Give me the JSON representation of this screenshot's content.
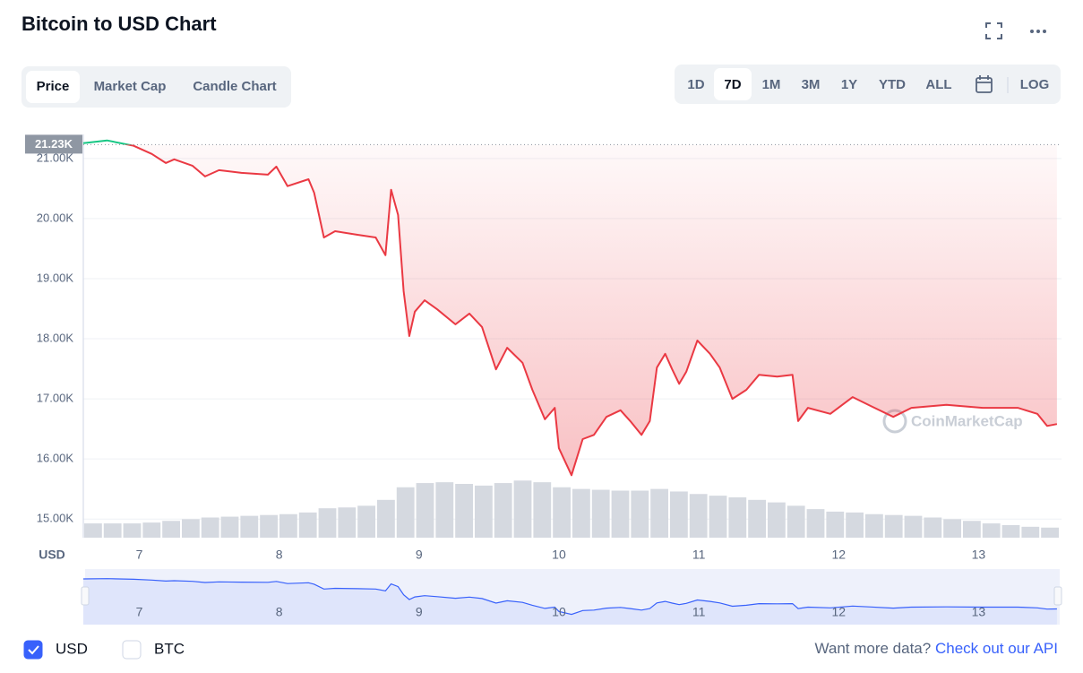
{
  "header": {
    "title": "Bitcoin to USD Chart"
  },
  "tabs": {
    "items": [
      "Price",
      "Market Cap",
      "Candle Chart"
    ],
    "active": 0
  },
  "ranges": {
    "items": [
      "1D",
      "7D",
      "1M",
      "3M",
      "1Y",
      "YTD",
      "ALL"
    ],
    "active": 1,
    "log": "LOG"
  },
  "chart_data": {
    "type": "line",
    "axis_unit": "USD",
    "watermark": "CoinMarketCap",
    "reference": {
      "value": 21230,
      "label": "21.23K"
    },
    "x": [
      6.6,
      6.77,
      6.96,
      7.09,
      7.19,
      7.25,
      7.38,
      7.47,
      7.57,
      7.73,
      7.92,
      7.98,
      8.06,
      8.21,
      8.25,
      8.32,
      8.4,
      8.56,
      8.69,
      8.76,
      8.8,
      8.85,
      8.89,
      8.93,
      8.97,
      9.04,
      9.13,
      9.26,
      9.36,
      9.45,
      9.55,
      9.63,
      9.74,
      9.81,
      9.9,
      9.97,
      10.0,
      10.09,
      10.17,
      10.25,
      10.34,
      10.44,
      10.51,
      10.59,
      10.65,
      10.7,
      10.76,
      10.81,
      10.86,
      10.91,
      10.99,
      11.08,
      11.15,
      11.24,
      11.34,
      11.43,
      11.56,
      11.67,
      11.71,
      11.78,
      11.94,
      12.1,
      12.23,
      12.39,
      12.52,
      12.77,
      13.03,
      13.28,
      13.42,
      13.49,
      13.56
    ],
    "series": [
      {
        "name": "Price",
        "color": "#ea3943",
        "up_color": "#16c784",
        "values": [
          21254,
          21300,
          21210,
          21075,
          20925,
          20985,
          20880,
          20700,
          20805,
          20760,
          20730,
          20865,
          20540,
          20655,
          20430,
          19685,
          19790,
          19730,
          19685,
          19390,
          20480,
          20060,
          18790,
          18045,
          18450,
          18640,
          18490,
          18240,
          18420,
          18195,
          17490,
          17850,
          17600,
          17150,
          16660,
          16850,
          16180,
          15730,
          16330,
          16400,
          16700,
          16810,
          16630,
          16400,
          16630,
          17520,
          17750,
          17490,
          17250,
          17450,
          17970,
          17750,
          17520,
          17000,
          17150,
          17400,
          17370,
          17400,
          16630,
          16850,
          16750,
          17030,
          16880,
          16700,
          16850,
          16900,
          16850,
          16850,
          16750,
          16550,
          16580
        ]
      }
    ],
    "volume": {
      "color": "#d5d9e0",
      "ylim": [
        0,
        120
      ],
      "values": [
        17,
        17,
        17,
        18,
        20,
        22,
        24,
        25,
        26,
        27,
        28,
        30,
        35,
        36,
        38,
        45,
        60,
        65,
        66,
        64,
        62,
        65,
        68,
        66,
        60,
        58,
        57,
        56,
        56,
        58,
        55,
        52,
        50,
        48,
        45,
        42,
        38,
        34,
        31,
        30,
        28,
        27,
        26,
        24,
        22,
        20,
        17,
        15,
        13,
        12
      ]
    },
    "xlim": [
      6.6,
      13.58
    ],
    "xticks": [
      7,
      8,
      9,
      10,
      11,
      12,
      13
    ],
    "ylim": [
      14690,
      21400
    ],
    "yticks": [
      {
        "value": 15000,
        "label": "15.00K"
      },
      {
        "value": 16000,
        "label": "16.00K"
      },
      {
        "value": 17000,
        "label": "17.00K"
      },
      {
        "value": 18000,
        "label": "18.00K"
      },
      {
        "value": 19000,
        "label": "19.00K"
      },
      {
        "value": 20000,
        "label": "20.00K"
      },
      {
        "value": 21000,
        "label": "21.00K"
      }
    ],
    "grid": true,
    "navigator_color": "#3861fb"
  },
  "currencies": {
    "items": [
      "USD",
      "BTC"
    ],
    "checked": [
      true,
      false
    ]
  },
  "footer": {
    "text": "Want more data?",
    "link": "Check out our API"
  }
}
